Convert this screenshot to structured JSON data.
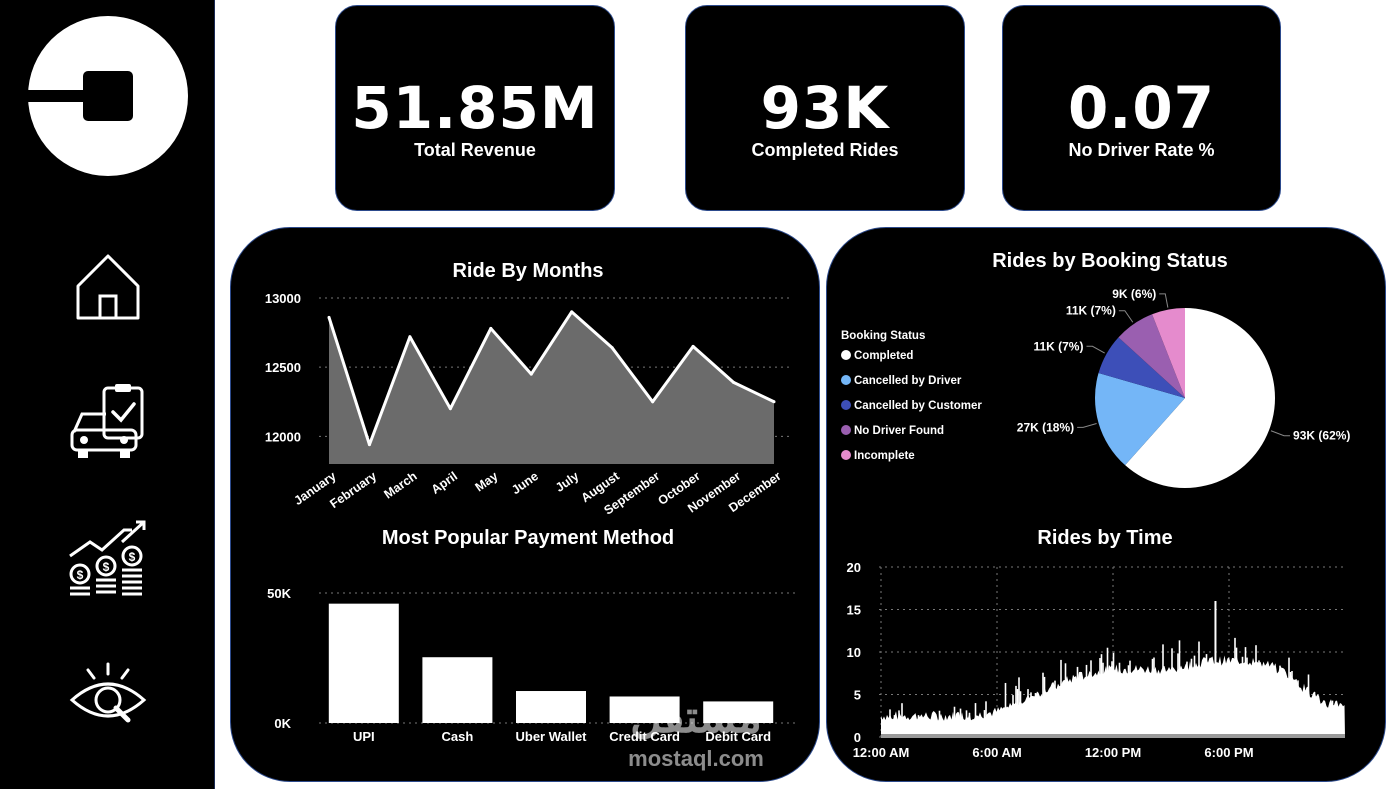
{
  "kpis": [
    {
      "value": "51.85M",
      "label": "Total Revenue"
    },
    {
      "value": "93K",
      "label": "Completed Rides"
    },
    {
      "value": "0.07",
      "label": "No Driver Rate %"
    }
  ],
  "sidebar": {
    "icons": [
      "uber-logo-icon",
      "home-icon",
      "car-checklist-icon",
      "revenue-growth-icon",
      "eye-search-icon"
    ]
  },
  "watermark": {
    "arabic": "مستقل",
    "text": "mostaql.com"
  },
  "chart_data": [
    {
      "type": "area",
      "title": "Ride By Months",
      "categories": [
        "January",
        "February",
        "March",
        "April",
        "May",
        "June",
        "July",
        "August",
        "September",
        "October",
        "November",
        "December"
      ],
      "values": [
        12860,
        11940,
        12720,
        12200,
        12780,
        12450,
        12900,
        12640,
        12250,
        12650,
        12390,
        12250
      ],
      "yticks": [
        "13000",
        "12500",
        "12000"
      ],
      "ylim": [
        11800,
        13000
      ],
      "grid": true
    },
    {
      "type": "bar",
      "title": "Most Popular Payment Method",
      "categories": [
        "UPI",
        "Cash",
        "Uber Wallet",
        "Credit Card",
        "Debit Card"
      ],
      "values": [
        45900,
        25300,
        12300,
        10200,
        8300
      ],
      "yticks": [
        "50K",
        "0K"
      ],
      "ylim": [
        0,
        50000
      ],
      "grid": true
    },
    {
      "type": "pie",
      "title": "Rides by Booking Status",
      "legend_title": "Booking Status",
      "legend_position": "left",
      "slices": [
        {
          "name": "Completed",
          "value": 93,
          "label": "93K (62%)",
          "color": "#ffffff"
        },
        {
          "name": "Cancelled by Driver",
          "value": 27,
          "label": "27K (18%)",
          "color": "#74b6f7"
        },
        {
          "name": "Cancelled by Customer",
          "value": 11,
          "label": "11K (7%)",
          "color": "#3d4fb8"
        },
        {
          "name": "No Driver Found",
          "value": 11,
          "label": "11K (7%)",
          "color": "#9a5fb0"
        },
        {
          "name": "Incomplete",
          "value": 9,
          "label": "9K (6%)",
          "color": "#e58bcd"
        }
      ]
    },
    {
      "type": "area",
      "title": "Rides by Time",
      "x_ticks": [
        "12:00 AM",
        "6:00 AM",
        "12:00 PM",
        "6:00 PM"
      ],
      "yticks": [
        "20",
        "15",
        "10",
        "5",
        "0"
      ],
      "ylim": [
        0,
        20
      ],
      "grid": true,
      "x_hours": [
        0,
        1,
        2,
        3,
        4,
        5,
        6,
        7,
        8,
        9,
        10,
        11,
        12,
        13,
        14,
        15,
        16,
        17,
        18,
        19,
        20,
        21,
        22,
        23
      ],
      "hourly_level": [
        2.5,
        2.5,
        2.5,
        2.5,
        2.5,
        2.6,
        3,
        4,
        5,
        6,
        7,
        7.5,
        8,
        8,
        8,
        8,
        8.5,
        9,
        9,
        9,
        8.5,
        7.5,
        5.5,
        4
      ],
      "hourly_peak": [
        4,
        4,
        4,
        4,
        4,
        4.5,
        6,
        7,
        8,
        9,
        10,
        11,
        11,
        11,
        11,
        11,
        12,
        16,
        13,
        11,
        11,
        10,
        8,
        6
      ]
    }
  ]
}
